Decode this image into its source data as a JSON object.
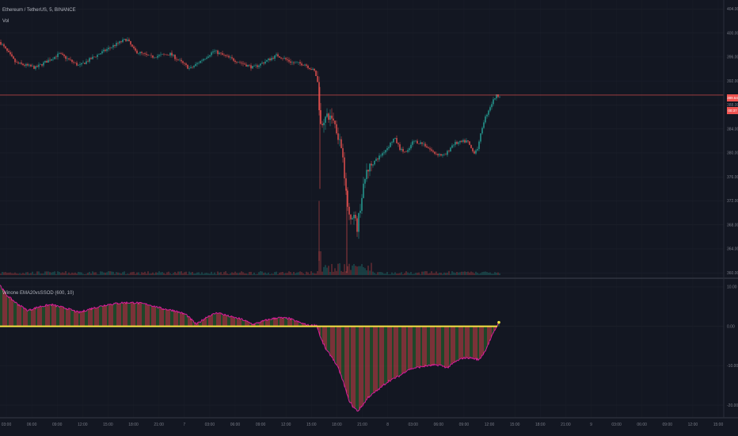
{
  "main_pane": {
    "symbol_line": "Ethereum / TetherUS, 5, BINANCE",
    "volume_label": "Vol",
    "price_ticks": [
      "404.00",
      "400.00",
      "396.00",
      "392.00",
      "388.00",
      "384.00",
      "380.00",
      "376.00",
      "372.00",
      "368.00",
      "364.00",
      "360.00"
    ],
    "price_range": [
      359.5,
      405.5
    ],
    "last_price_tag": "389.64",
    "countdown_tag": "00:37",
    "last_price": 389.64,
    "colors": {
      "up": "#26a69a",
      "down": "#ef5350",
      "price_line": "#ef5350",
      "tag": "#ef5350"
    }
  },
  "indicator_pane": {
    "label": "Winone EMA20vsSSOD (600, 10)",
    "ticks": [
      "10.00",
      "0.00",
      "-10.00",
      "-20.00"
    ],
    "range": [
      -23,
      12
    ],
    "colors": {
      "histogram_pos": "#ef5350",
      "histogram_neg": "#2e7d32",
      "outline": "#d81b9c",
      "zero_line": "#f5e342"
    }
  },
  "time_axis": {
    "labels": [
      "03:00",
      "06:00",
      "09:00",
      "12:00",
      "15:00",
      "18:00",
      "21:00",
      "7",
      "03:00",
      "06:00",
      "09:00",
      "12:00",
      "15:00",
      "18:00",
      "21:00",
      "8",
      "03:00",
      "06:00",
      "09:00",
      "12:00",
      "15:00",
      "18:00",
      "21:00",
      "9",
      "03:00",
      "06:00",
      "09:00",
      "12:00",
      "15:00"
    ]
  }
}
